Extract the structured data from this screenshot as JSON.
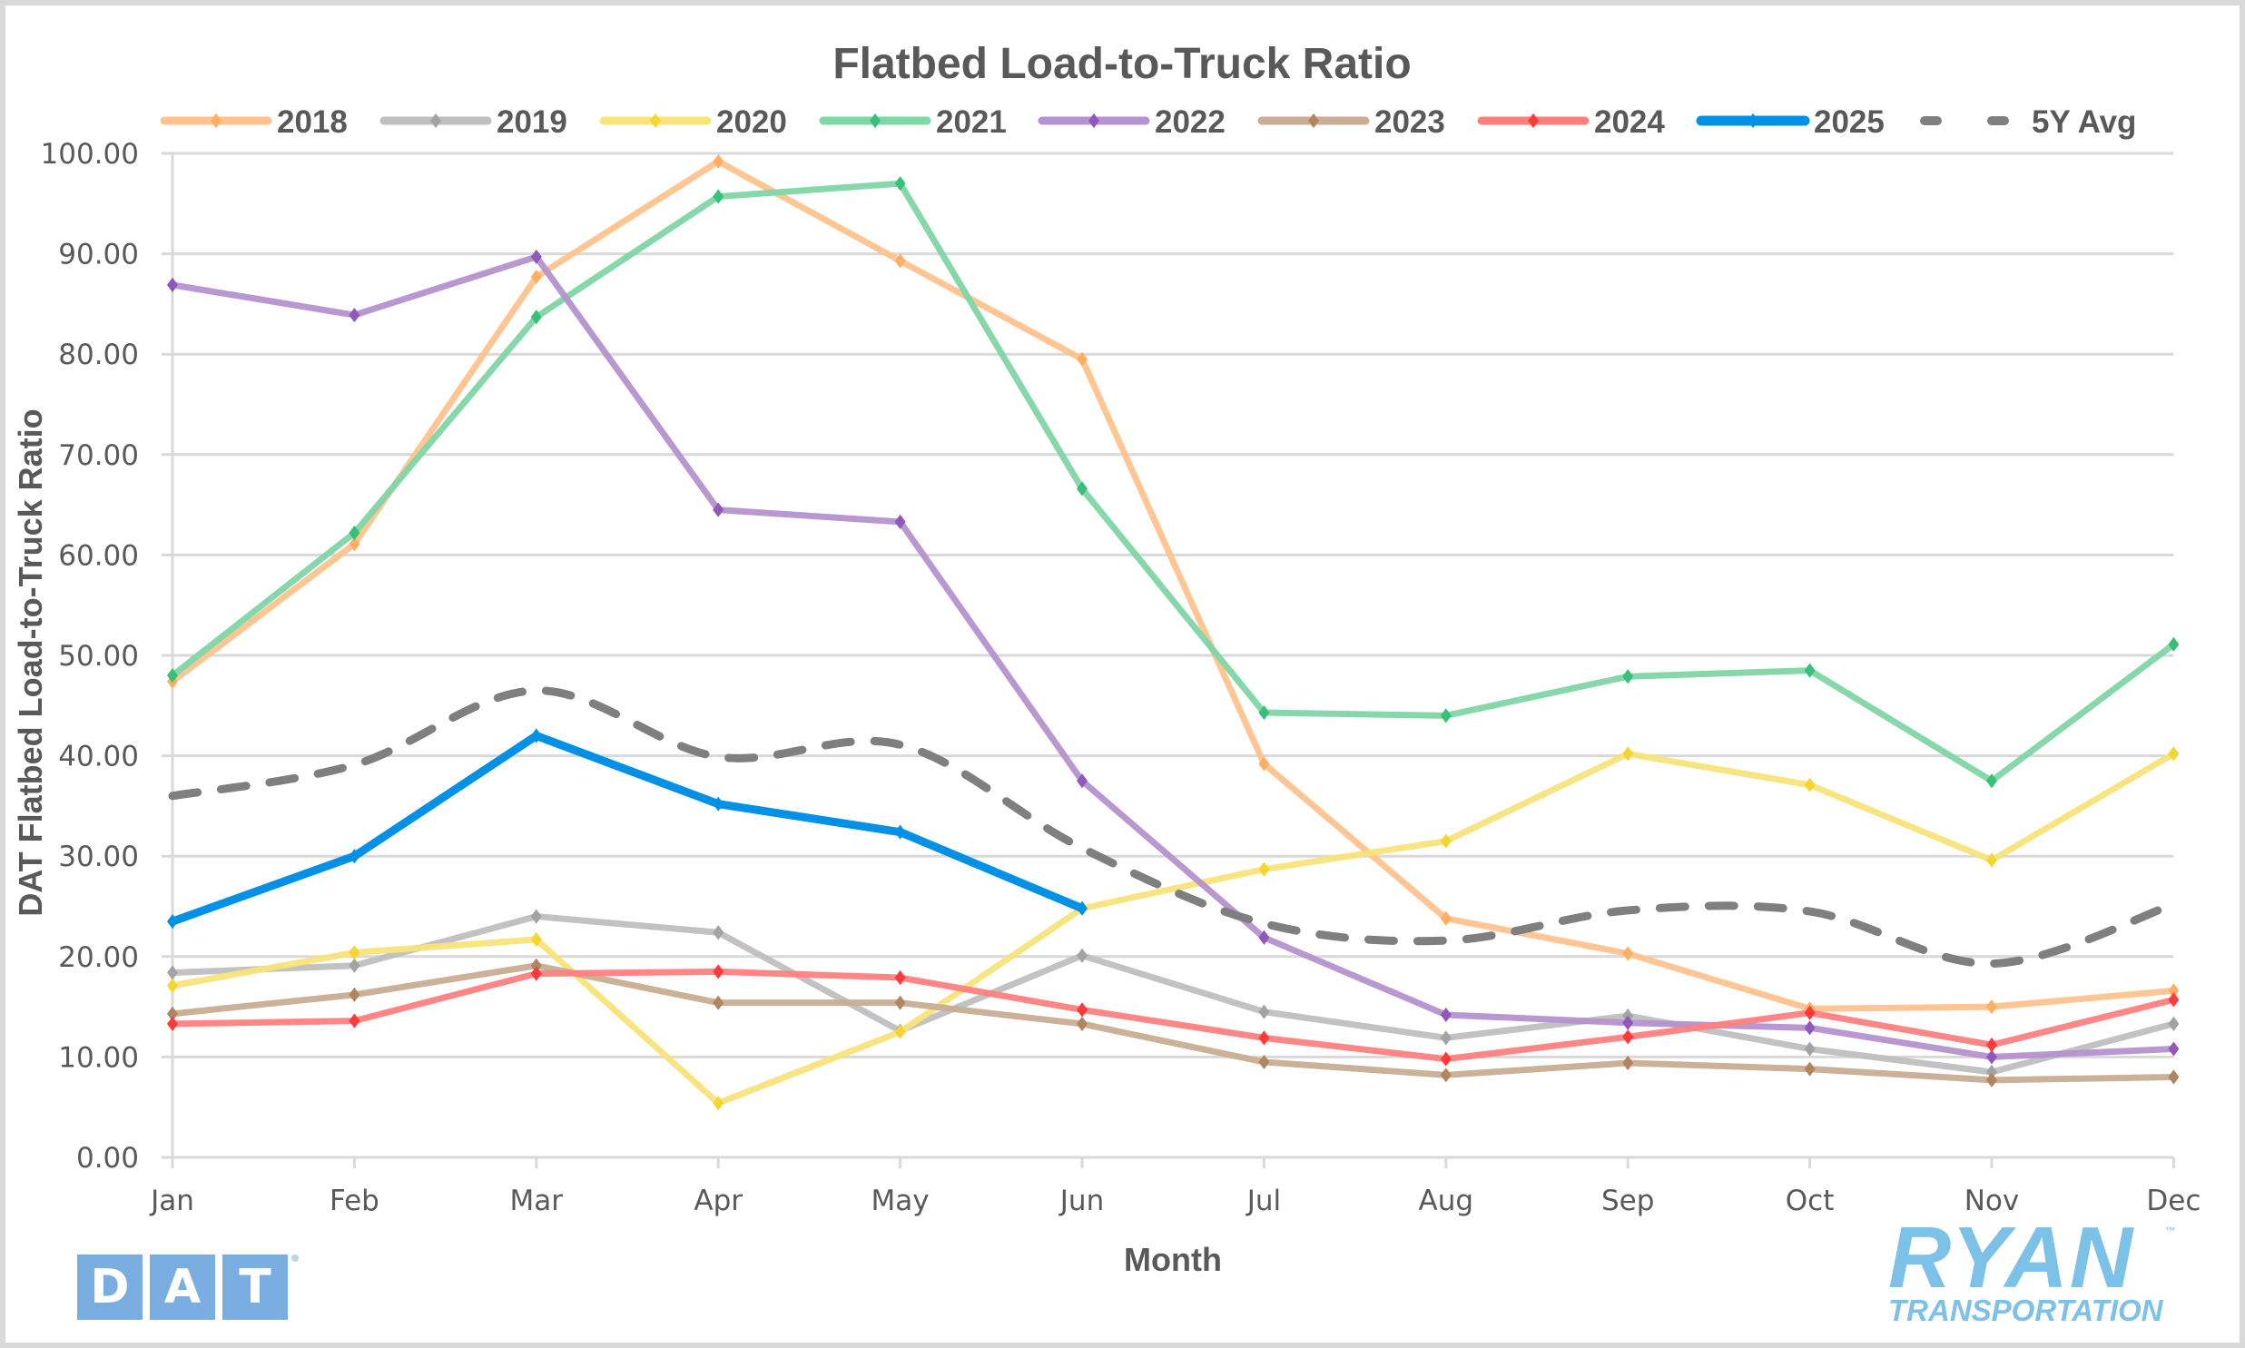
{
  "chart_data": {
    "type": "line",
    "title": "Flatbed Load-to-Truck Ratio",
    "xlabel": "Month",
    "ylabel": "DAT Flatbed Load-to-Truck Ratio",
    "ylim": [
      0,
      100
    ],
    "yticks": [
      0,
      10,
      20,
      30,
      40,
      50,
      60,
      70,
      80,
      90,
      100
    ],
    "ytick_labels": [
      "0.00",
      "10.00",
      "20.00",
      "30.00",
      "40.00",
      "50.00",
      "60.00",
      "70.00",
      "80.00",
      "90.00",
      "100.00"
    ],
    "grid": "horizontal",
    "legend_position": "top",
    "categories": [
      "Jan",
      "Feb",
      "Mar",
      "Apr",
      "May",
      "Jun",
      "Jul",
      "Aug",
      "Sep",
      "Oct",
      "Nov",
      "Dec"
    ],
    "series": [
      {
        "name": "2018",
        "color": "#ffc38e",
        "marker": "#ffae63",
        "style": "solid",
        "values": [
          47.4,
          61.1,
          87.7,
          99.2,
          89.3,
          79.5,
          39.2,
          23.8,
          20.3,
          14.8,
          15.0,
          16.6
        ]
      },
      {
        "name": "2019",
        "color": "#bfbfbf",
        "marker": "#a3a3a3",
        "style": "solid",
        "values": [
          18.4,
          19.1,
          24.0,
          22.4,
          12.6,
          20.1,
          14.5,
          11.9,
          14.1,
          10.8,
          8.5,
          13.3
        ]
      },
      {
        "name": "2020",
        "color": "#f8e47a",
        "marker": "#f3d630",
        "style": "solid",
        "values": [
          17.1,
          20.4,
          21.7,
          5.4,
          12.5,
          24.8,
          28.7,
          31.5,
          40.2,
          37.1,
          29.6,
          40.2
        ]
      },
      {
        "name": "2021",
        "color": "#7fd6a6",
        "marker": "#38c07a",
        "style": "solid",
        "values": [
          48.0,
          62.2,
          83.7,
          95.7,
          97.0,
          66.6,
          44.3,
          44.0,
          47.9,
          48.5,
          37.5,
          51.1
        ]
      },
      {
        "name": "2022",
        "color": "#b592d0",
        "marker": "#9058bb",
        "style": "solid",
        "values": [
          86.9,
          83.9,
          89.7,
          64.5,
          63.3,
          37.5,
          21.9,
          14.2,
          13.4,
          12.9,
          10.0,
          10.8
        ]
      },
      {
        "name": "2023",
        "color": "#c9ad94",
        "marker": "#b0855f",
        "style": "solid",
        "values": [
          14.3,
          16.2,
          19.1,
          15.4,
          15.4,
          13.3,
          9.5,
          8.2,
          9.4,
          8.8,
          7.7,
          8.0
        ]
      },
      {
        "name": "2024",
        "color": "#ff7f7f",
        "marker": "#ff3a3a",
        "style": "solid",
        "values": [
          13.3,
          13.6,
          18.3,
          18.5,
          17.9,
          14.7,
          11.9,
          9.8,
          12.0,
          14.4,
          11.2,
          15.7
        ]
      },
      {
        "name": "2025",
        "color": "#0090e6",
        "marker": "#0090e6",
        "style": "solid",
        "values": [
          23.5,
          30.0,
          42.0,
          35.2,
          32.4,
          24.8,
          null,
          null,
          null,
          null,
          null,
          null
        ]
      },
      {
        "name": "5Y Avg",
        "color": "#7f7f7f",
        "marker": null,
        "style": "dashed",
        "values": [
          36.0,
          39.1,
          46.5,
          39.9,
          41.1,
          30.8,
          23.3,
          21.6,
          24.6,
          24.5,
          19.3,
          25.2
        ]
      }
    ]
  },
  "logos": {
    "left": {
      "letters": [
        "D",
        "A",
        "T"
      ]
    },
    "right": {
      "name": "RYAN",
      "subtitle": "TRANSPORTATION",
      "mark": "™"
    }
  }
}
